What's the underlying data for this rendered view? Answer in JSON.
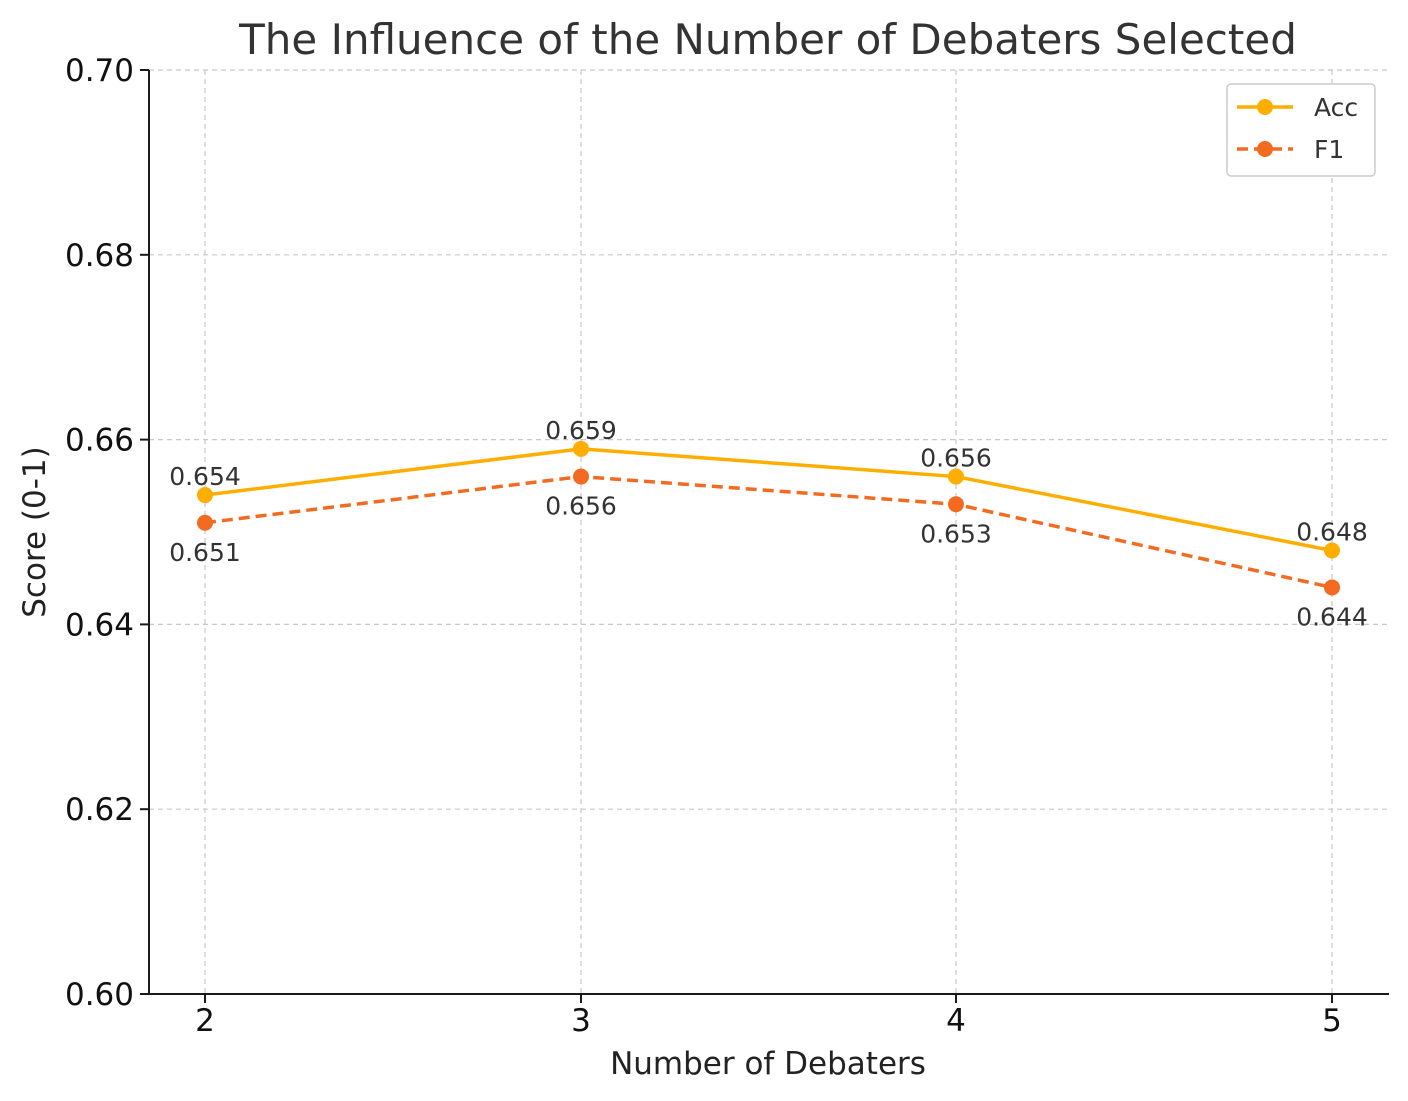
{
  "chart_data": {
    "type": "line",
    "title": "The Influence of the Number of Debaters Selected",
    "xlabel": "Number of Debaters",
    "ylabel": "Score (0-1)",
    "x": [
      2,
      3,
      4,
      5
    ],
    "x_tick_labels": [
      "2",
      "3",
      "4",
      "5"
    ],
    "ylim": [
      0.6,
      0.7
    ],
    "y_ticks": [
      0.6,
      0.62,
      0.64,
      0.66,
      0.68,
      0.7
    ],
    "y_tick_labels": [
      "0.60",
      "0.62",
      "0.64",
      "0.66",
      "0.68",
      "0.70"
    ],
    "grid": true,
    "legend_position": "top-right",
    "series": [
      {
        "name": "Acc",
        "values": [
          0.654,
          0.659,
          0.656,
          0.648
        ],
        "labels": [
          "0.654",
          "0.659",
          "0.656",
          "0.648"
        ],
        "color": "#FFAE00",
        "line_style": "solid",
        "label_placement": "above"
      },
      {
        "name": "F1",
        "values": [
          0.651,
          0.656,
          0.653,
          0.644
        ],
        "labels": [
          "0.651",
          "0.656",
          "0.653",
          "0.644"
        ],
        "color": "#F26B21",
        "line_style": "dashed",
        "label_placement": "below"
      }
    ]
  }
}
